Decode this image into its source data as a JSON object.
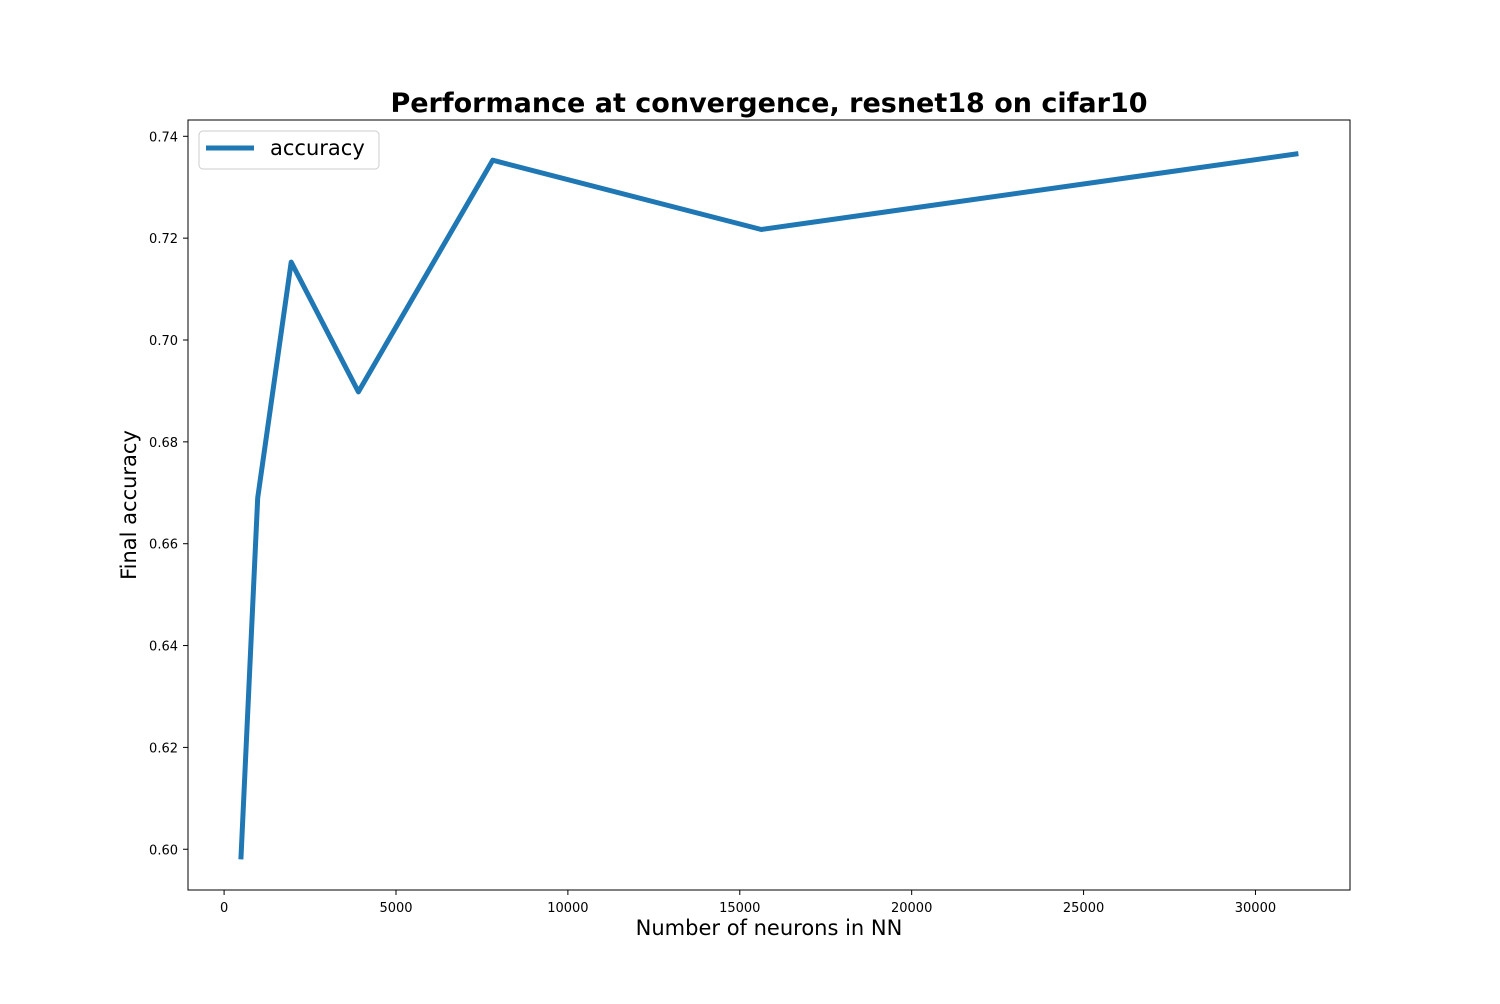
{
  "chart_data": {
    "type": "line",
    "title": "Performance at convergence, resnet18 on cifar10",
    "xlabel": "Number of neurons in NN",
    "ylabel": "Final accuracy",
    "xlim": [
      -1050,
      32750
    ],
    "ylim": [
      0.592,
      0.7432
    ],
    "xticks": [
      0,
      5000,
      10000,
      15000,
      20000,
      25000,
      30000
    ],
    "xtick_labels": [
      "0",
      "5000",
      "10000",
      "15000",
      "20000",
      "25000",
      "30000"
    ],
    "yticks": [
      0.6,
      0.62,
      0.64,
      0.66,
      0.68,
      0.7,
      0.72,
      0.74
    ],
    "ytick_labels": [
      "0.60",
      "0.62",
      "0.64",
      "0.66",
      "0.68",
      "0.70",
      "0.72",
      "0.74"
    ],
    "grid": false,
    "legend_position": "top-left",
    "series": [
      {
        "name": "accuracy",
        "color": "#1f77b4",
        "x": [
          488,
          977,
          1953,
          3906,
          7813,
          15625,
          31250
        ],
        "y": [
          0.598,
          0.669,
          0.7153,
          0.6898,
          0.7353,
          0.7217,
          0.7366
        ]
      }
    ]
  }
}
